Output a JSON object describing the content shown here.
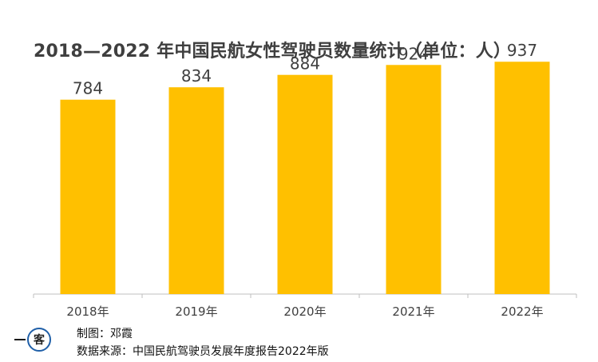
{
  "title": "2018—2022 年中国民航女性驾驶员数量统计（单位：人）",
  "chart_data": {
    "type": "bar",
    "title": "2018—2022 年中国民航女性驾驶员数量统计（单位：人）",
    "categories": [
      "2018年",
      "2019年",
      "2020年",
      "2021年",
      "2022年"
    ],
    "values": [
      784,
      834,
      884,
      924,
      937
    ],
    "ylim": [
      0,
      1000
    ],
    "xlabel": "",
    "ylabel": "",
    "grid": false,
    "legend": "none",
    "bar_color": "#FFC000"
  },
  "footer": {
    "logo_text": "客",
    "author": "制图：邓霞",
    "source": "数据来源：中国民航驾驶员发展年度报告2022年版"
  },
  "colors": {
    "bar": "#FFC000",
    "axis": "#bfbfbf",
    "title": "#3f3f3f",
    "label": "#404040"
  }
}
